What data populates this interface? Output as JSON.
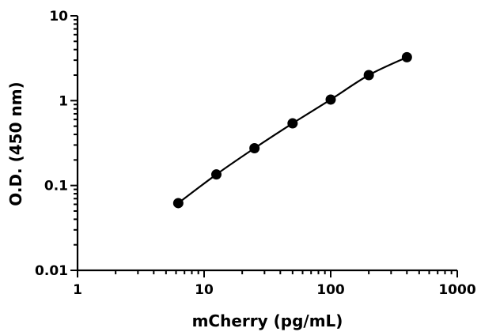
{
  "chart_data": {
    "type": "scatter",
    "xlabel": "mCherry (pg/mL)",
    "ylabel": "O.D. (450 nm)",
    "xscale": "log",
    "yscale": "log",
    "xlim": [
      1,
      1000
    ],
    "ylim": [
      0.01,
      10
    ],
    "x_ticks": [
      {
        "value": 1,
        "label": "1"
      },
      {
        "value": 10,
        "label": "10"
      },
      {
        "value": 100,
        "label": "100"
      },
      {
        "value": 1000,
        "label": "1000"
      }
    ],
    "y_ticks": [
      {
        "value": 0.01,
        "label": "0.01"
      },
      {
        "value": 0.1,
        "label": "0.1"
      },
      {
        "value": 1,
        "label": "1"
      },
      {
        "value": 10,
        "label": "10"
      }
    ],
    "grid": false,
    "series": [
      {
        "x": [
          6.25,
          12.5,
          25,
          50,
          100,
          200,
          400
        ],
        "y": [
          0.062,
          0.135,
          0.275,
          0.54,
          1.03,
          2.0,
          3.25
        ],
        "style": "markers with fitted curve",
        "color": "#000000"
      }
    ]
  }
}
